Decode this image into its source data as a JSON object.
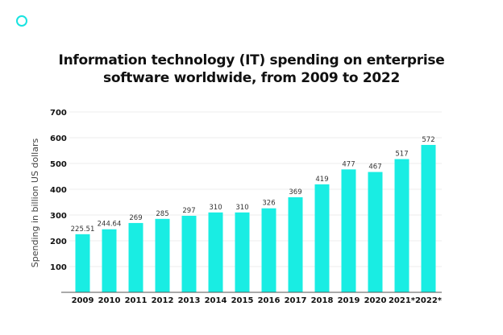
{
  "chart_data": {
    "type": "bar",
    "title_line1": "Information technology (IT) spending on enterprise",
    "title_line2": "software worldwide, from 2009 to 2022",
    "xlabel": "",
    "ylabel": "Spending in billion US dollars",
    "ylim": [
      0,
      700
    ],
    "yticks": [
      100,
      200,
      300,
      400,
      500,
      600,
      700
    ],
    "grid": true,
    "categories": [
      "2009",
      "2010",
      "2011",
      "2012",
      "2013",
      "2014",
      "2015",
      "2016",
      "2017",
      "2018",
      "2019",
      "2020",
      "2021*",
      "2022*"
    ],
    "values": [
      225.51,
      244.64,
      269,
      285,
      297,
      310,
      310,
      326,
      369,
      419,
      477,
      467,
      517,
      572
    ],
    "labels": [
      "225.51",
      "244.64",
      "269",
      "285",
      "297",
      "310",
      "310",
      "326",
      "369",
      "419",
      "477",
      "467",
      "517",
      "572"
    ],
    "bar_color": "#19ede3"
  }
}
